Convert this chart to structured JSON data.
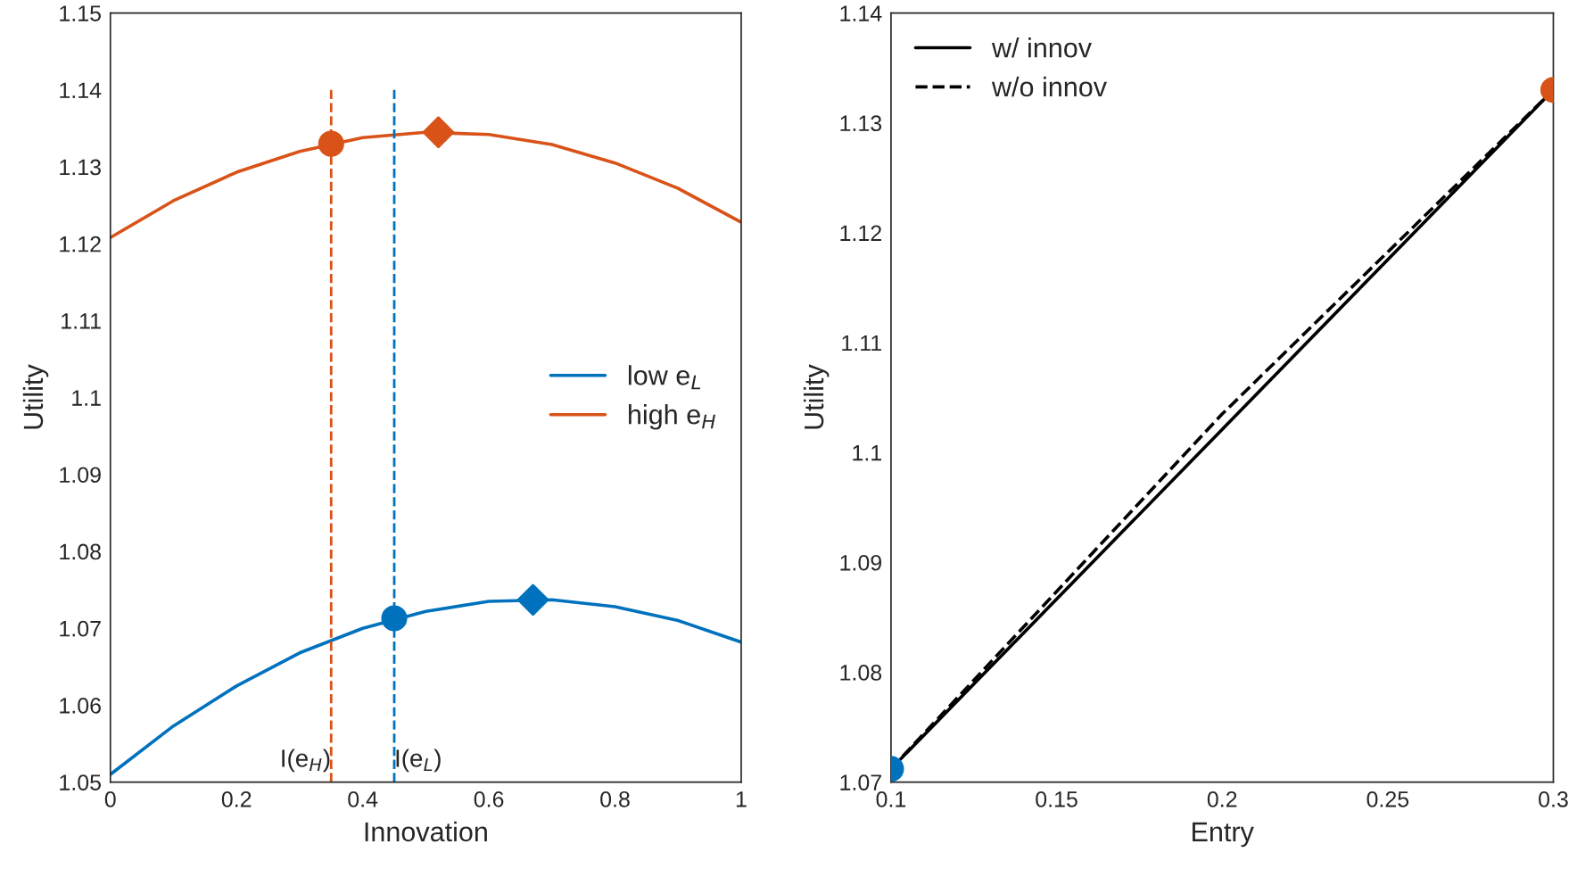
{
  "chart_data": [
    {
      "type": "line",
      "xlabel": "Innovation",
      "ylabel": "Utility",
      "xlim": [
        0,
        1
      ],
      "xticks": [
        0,
        0.2,
        0.4,
        0.6,
        0.8,
        1
      ],
      "ylim": [
        1.05,
        1.15
      ],
      "yticks": [
        1.05,
        1.06,
        1.07,
        1.08,
        1.09,
        1.1,
        1.11,
        1.12,
        1.13,
        1.14,
        1.15
      ],
      "grid": false,
      "legend": "right",
      "series": [
        {
          "name": "low e$_{L}$",
          "color": "#0072bd",
          "x": [
            0,
            0.1,
            0.2,
            0.3,
            0.4,
            0.5,
            0.6,
            0.7,
            0.8,
            0.9,
            1.0
          ],
          "values": [
            1.051,
            1.0573,
            1.0625,
            1.0668,
            1.07,
            1.0722,
            1.0735,
            1.0737,
            1.0728,
            1.071,
            1.0682
          ]
        },
        {
          "name": "high e$_{H}$",
          "color": "#d95319",
          "x": [
            0,
            0.1,
            0.2,
            0.3,
            0.4,
            0.5,
            0.6,
            0.7,
            0.8,
            0.9,
            1.0
          ],
          "values": [
            1.1208,
            1.1256,
            1.1293,
            1.132,
            1.1338,
            1.1345,
            1.1342,
            1.1329,
            1.1305,
            1.1272,
            1.1228
          ]
        },
        {
          "type": "line",
          "line_style": "dashed",
          "color": "#d95319",
          "x": [
            0.35,
            0.35
          ],
          "values": [
            1.05,
            1.14
          ]
        },
        {
          "type": "line",
          "line_style": "dashed",
          "color": "#0072bd",
          "x": [
            0.45,
            0.45
          ],
          "values": [
            1.05,
            1.14
          ]
        },
        {
          "type": "scatter",
          "marker": "circle",
          "color": "#0072bd",
          "x": [
            0.45
          ],
          "values": [
            1.0713
          ]
        },
        {
          "type": "scatter",
          "marker": "diamond",
          "color": "#0072bd",
          "x": [
            0.67
          ],
          "values": [
            1.0737
          ]
        },
        {
          "type": "scatter",
          "marker": "circle",
          "color": "#d95319",
          "x": [
            0.35
          ],
          "values": [
            1.133
          ]
        },
        {
          "type": "scatter",
          "marker": "diamond",
          "color": "#d95319",
          "x": [
            0.52
          ],
          "values": [
            1.1345
          ]
        }
      ],
      "annotations": [
        {
          "text": "I(e$_{H}$)",
          "x": 0.35,
          "y": 1.05
        },
        {
          "text": "I(e$_{L}$)",
          "x": 0.45,
          "y": 1.05
        }
      ]
    },
    {
      "type": "line",
      "xlabel": "Entry",
      "ylabel": "Utility",
      "xlim": [
        0.1,
        0.3
      ],
      "xticks": [
        0.1,
        0.15,
        0.2,
        0.25,
        0.3
      ],
      "ylim": [
        1.07,
        1.14
      ],
      "yticks": [
        1.07,
        1.08,
        1.09,
        1.1,
        1.11,
        1.12,
        1.13,
        1.14
      ],
      "grid": false,
      "legend": "top left",
      "series": [
        {
          "name": "w/ innov",
          "color": "#000000",
          "line_style": "solid",
          "x": [
            0.1,
            0.3
          ],
          "values": [
            1.0712,
            1.133
          ]
        },
        {
          "name": "w/o innov",
          "color": "#000000",
          "line_style": "dashed",
          "x": [
            0.1,
            0.2,
            0.3
          ],
          "values": [
            1.0712,
            1.1035,
            1.133
          ]
        },
        {
          "type": "scatter",
          "marker": "circle",
          "color": "#0072bd",
          "x": [
            0.1
          ],
          "values": [
            1.0712
          ]
        },
        {
          "type": "scatter",
          "marker": "circle",
          "color": "#d95319",
          "x": [
            0.3
          ],
          "values": [
            1.133
          ]
        }
      ]
    }
  ]
}
